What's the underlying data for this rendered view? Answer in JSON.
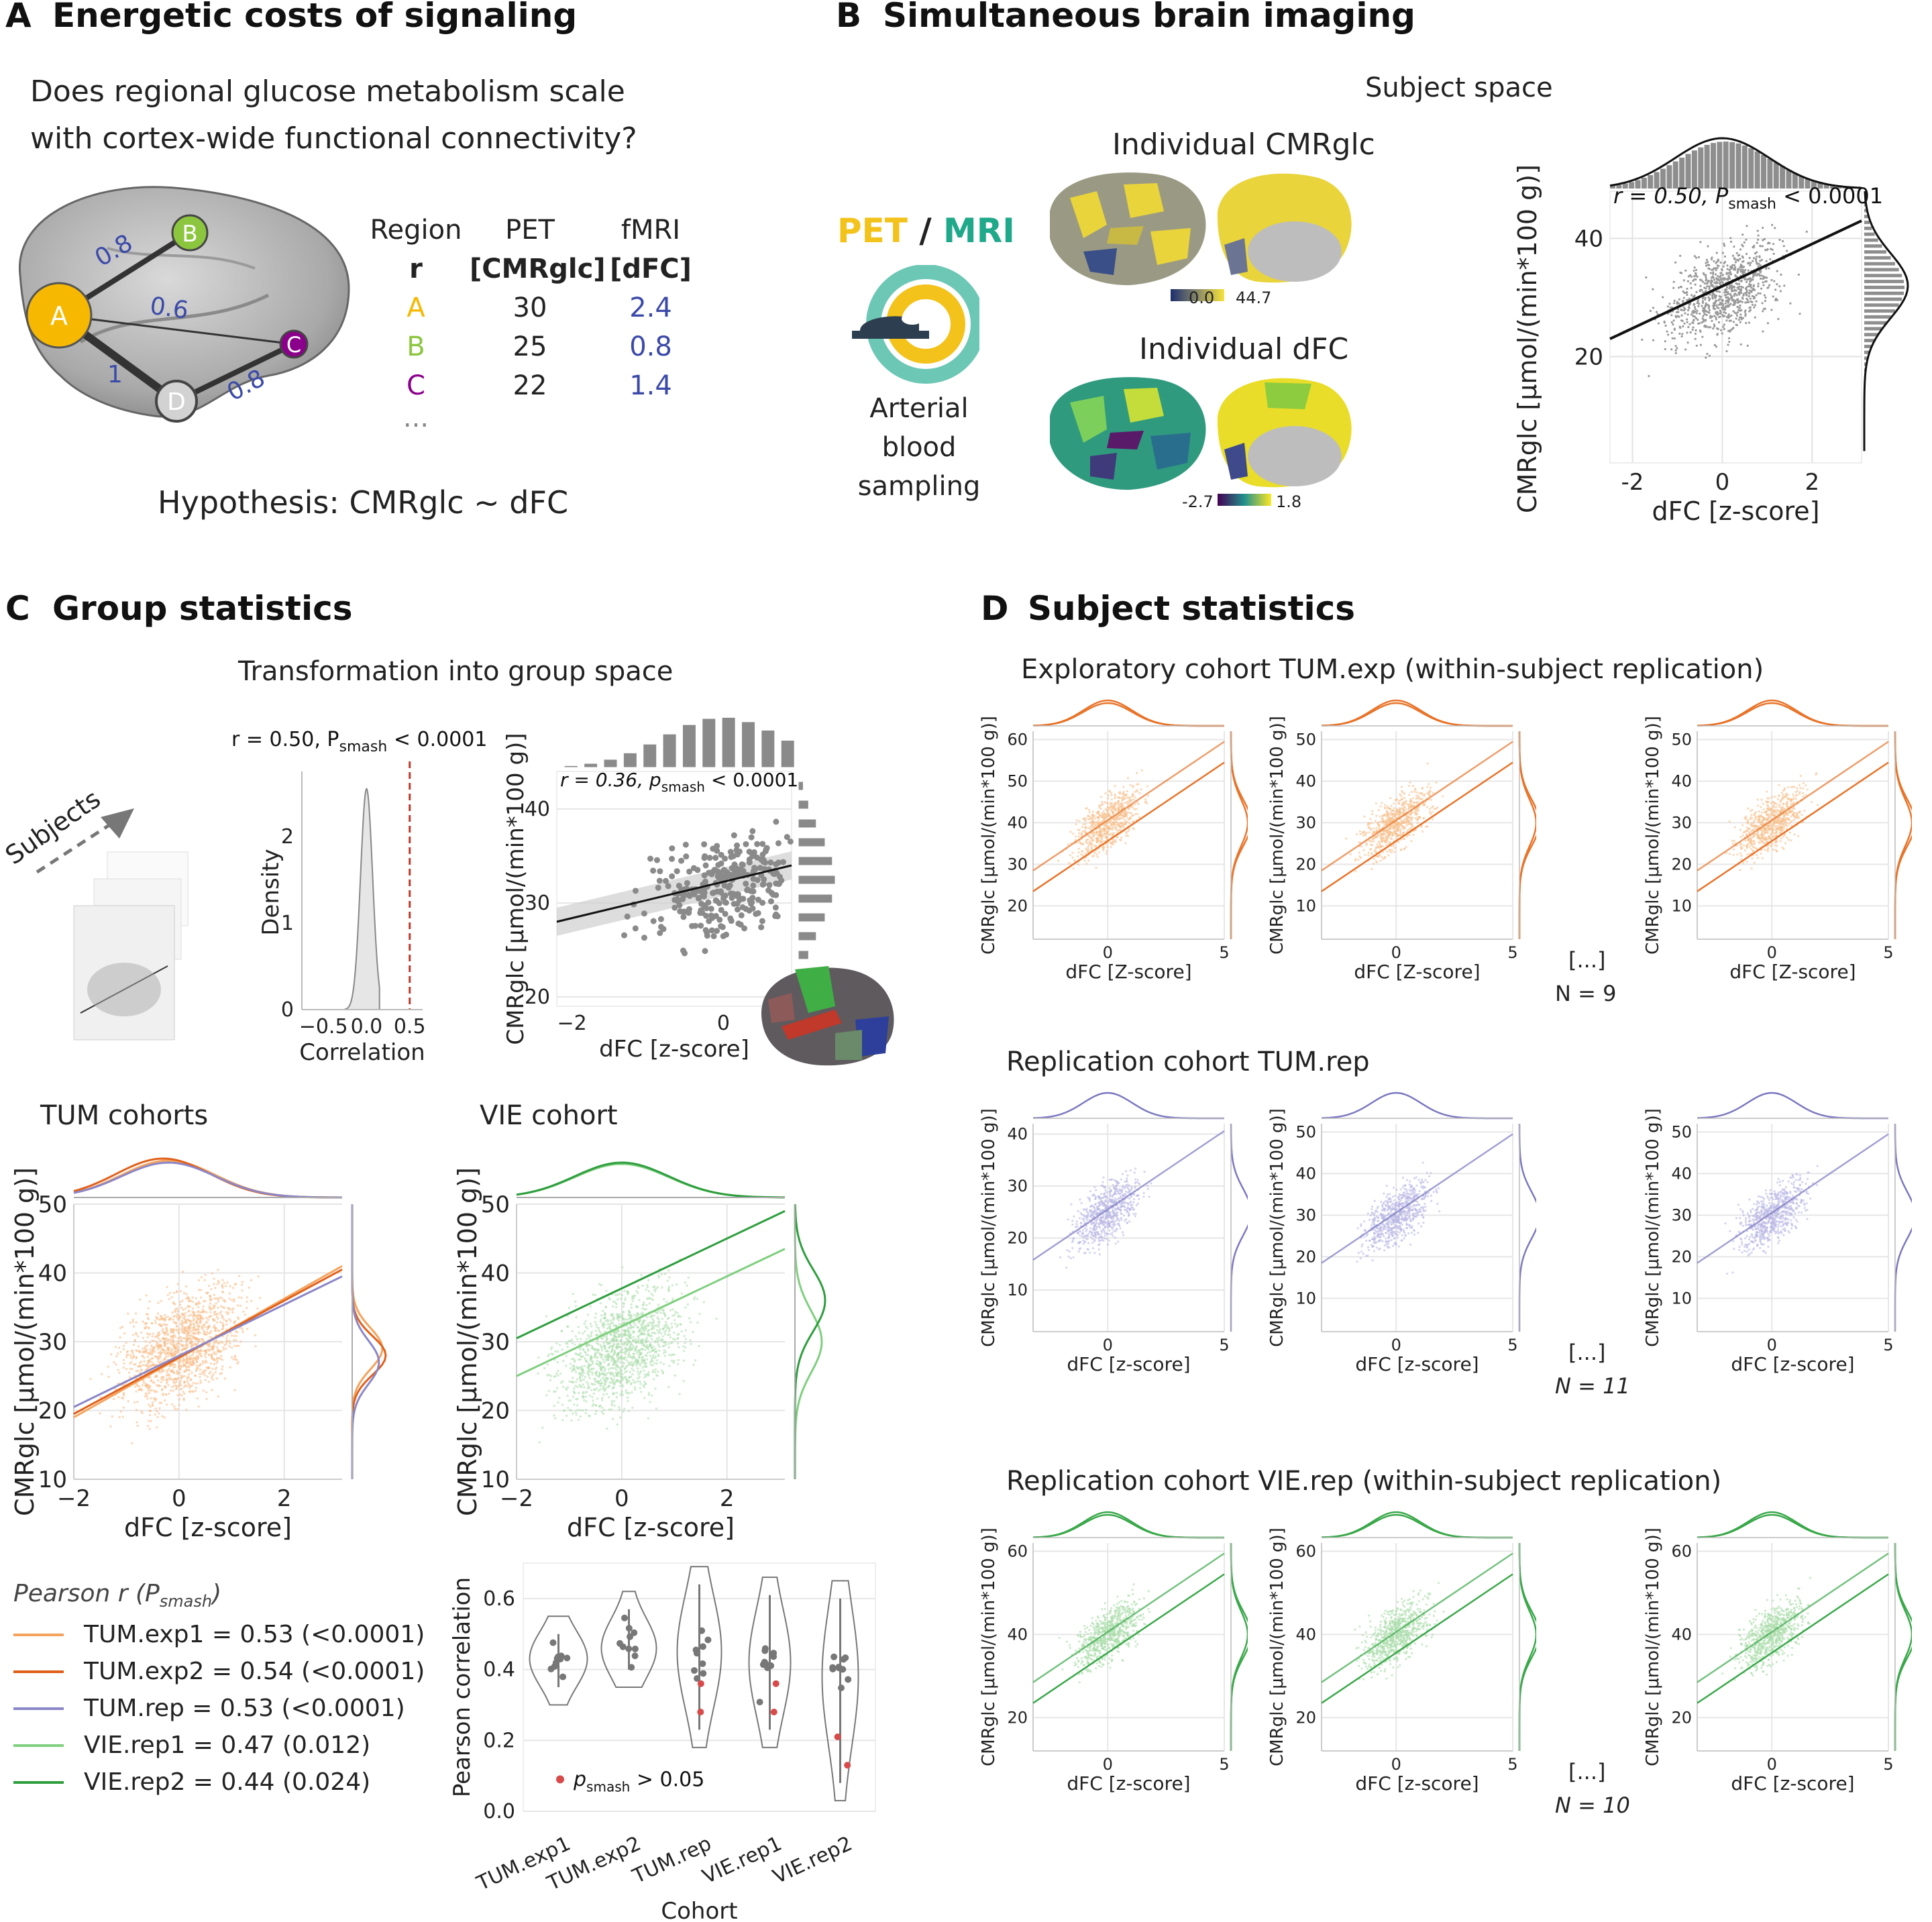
{
  "panelA": {
    "letter": "A",
    "title": "Energetic costs of signaling",
    "question_line1": "Does regional glucose metabolism scale",
    "question_line2": "with cortex-wide functional connectivity?",
    "hypothesis": "Hypothesis: CMRglc ~ dFC",
    "nodes": {
      "A": "A",
      "B": "B",
      "C": "C",
      "D": "D"
    },
    "edge_labels": {
      "ab": "0.8",
      "ac": "0.6",
      "ad": "1",
      "dc": "0.8"
    },
    "table": {
      "head1": [
        "Region",
        "PET",
        "fMRI"
      ],
      "head2": [
        "r",
        "[CMRglc]",
        "[dFC]"
      ],
      "rows": [
        {
          "region": "A",
          "pet": "30",
          "fmri": "2.4"
        },
        {
          "region": "B",
          "pet": "25",
          "fmri": "0.8"
        },
        {
          "region": "C",
          "pet": "22",
          "fmri": "1.4"
        }
      ],
      "ellipsis": "..."
    },
    "colors": {
      "A": "#f6b800",
      "B": "#8cc63f",
      "C": "#8b008b",
      "D": "#cfcfcf",
      "blue": "#3b4aa8"
    }
  },
  "panelB": {
    "letter": "B",
    "title": "Simultaneous brain imaging",
    "pet": "PET",
    "slash": " / ",
    "mri": "MRI",
    "arterial1": "Arterial blood",
    "arterial2": "sampling",
    "subject_space": "Subject space",
    "cmr_title": "Individual CMRglc",
    "cmr_cb_min": "0.0",
    "cmr_cb_max": "44.7",
    "dfc_title": "Individual dFC",
    "dfc_cb_min": "-2.7",
    "dfc_cb_max": "1.8",
    "scatter": {
      "annot_r": "r = 0.50, P",
      "annot_sub": "smash",
      "annot_p": " < 0.0001",
      "xlabel": "dFC [z-score]",
      "ylabel": "CMRglc [μmol/(min*100 g)]",
      "xticks": [
        "-2",
        "0",
        "2"
      ],
      "yticks": [
        "20",
        "40"
      ]
    }
  },
  "panelC": {
    "letter": "C",
    "title": "Group statistics",
    "transform": "Transformation into group space",
    "subjects": "Subjects",
    "density": {
      "annot_r": "r = 0.50, P",
      "annot_sub": "smash",
      "annot_p": " < 0.0001",
      "ylabel": "Density",
      "xlabel": "Correlation",
      "xticks": [
        "−0.5",
        "0.0",
        "0.5"
      ],
      "yticks": [
        "0",
        "1",
        "2"
      ]
    },
    "group_scatter": {
      "annot_r": "r = 0.36, p",
      "annot_sub": "smash",
      "annot_p": " < 0.0001",
      "ylabel": "CMRglc [μmol/(min*100 g)]",
      "xlabel": "dFC [z-score]",
      "xticks": [
        "−2",
        "0"
      ],
      "yticks": [
        "20",
        "30",
        "40"
      ]
    },
    "tum": {
      "title": "TUM cohorts",
      "ylabel": "CMRglc [μmol/(min*100 g)]",
      "xlabel": "dFC [z-score]",
      "xticks": [
        "−2",
        "0",
        "2"
      ],
      "yticks": [
        "10",
        "20",
        "30",
        "40",
        "50"
      ]
    },
    "vie": {
      "title": "VIE cohort",
      "ylabel": "CMRglc [μmol/(min*100 g)]",
      "xlabel": "dFC [z-score]",
      "xticks": [
        "−2",
        "0",
        "2"
      ],
      "yticks": [
        "10",
        "20",
        "30",
        "40",
        "50"
      ]
    },
    "legend": {
      "title": "Pearson r (P",
      "title_sub": "smash",
      "title_end": ")",
      "items": [
        {
          "label": "TUM.exp1 = 0.53 (<0.0001)",
          "color": "#f5a35c"
        },
        {
          "label": "TUM.exp2 = 0.54 (<0.0001)",
          "color": "#e0601a"
        },
        {
          "label": "TUM.rep = 0.53 (<0.0001)",
          "color": "#8a86c8"
        },
        {
          "label": "VIE.rep1 = 0.47 (0.012)",
          "color": "#7fcf7f"
        },
        {
          "label": "VIE.rep2 = 0.44 (0.024)",
          "color": "#2e9e3e"
        }
      ]
    },
    "violin": {
      "ylabel": "Pearson correlation",
      "xlabel": "Cohort",
      "yticks": [
        "0.0",
        "0.2",
        "0.4",
        "0.6"
      ],
      "categories": [
        "TUM.exp1",
        "TUM.exp2",
        "TUM.rep",
        "VIE.rep1",
        "VIE.rep2"
      ],
      "legend_p": "p",
      "legend_sub": "smash",
      "legend_end": " > 0.05"
    }
  },
  "panelD": {
    "letter": "D",
    "title": "Subject statistics",
    "rows": [
      {
        "title": "Exploratory cohort TUM.exp (within-subject replication)",
        "xlabel": "dFC [Z-score]",
        "ylabel": "CMRglc [μmol/(min*100 g)]",
        "ellipsis": "[...]",
        "n": "N = 9",
        "color": "#e8742a",
        "light": "#f7c08c",
        "yticks": [
          [
            "20",
            "30",
            "40",
            "50",
            "60"
          ],
          [
            "10",
            "20",
            "30",
            "40",
            "50"
          ],
          [
            "10",
            "20",
            "30",
            "40",
            "50"
          ]
        ],
        "xticks": [
          "0",
          "5"
        ]
      },
      {
        "title": "Replication cohort TUM.rep",
        "xlabel": "dFC [z-score]",
        "ylabel": "CMRglc [μmol/(min*100 g)]",
        "ellipsis": "[...]",
        "n": "N = 11",
        "color": "#7b78c0",
        "light": "#b9b7e4",
        "yticks": [
          [
            "10",
            "20",
            "30",
            "40"
          ],
          [
            "10",
            "20",
            "30",
            "40",
            "50"
          ],
          [
            "10",
            "20",
            "30",
            "40",
            "50"
          ]
        ],
        "xticks": [
          "0",
          "5"
        ]
      },
      {
        "title": "Replication cohort VIE.rep (within-subject replication)",
        "xlabel": "dFC [z-score]",
        "ylabel": "CMRglc [μmol/(min*100 g)]",
        "ellipsis": "[...]",
        "n": "N = 10",
        "color": "#3aa84a",
        "light": "#a9dca9",
        "yticks": [
          [
            "20",
            "40",
            "60"
          ],
          [
            "20",
            "40",
            "60"
          ],
          [
            "20",
            "40",
            "60"
          ]
        ],
        "xticks": [
          "0",
          "5"
        ]
      }
    ]
  }
}
